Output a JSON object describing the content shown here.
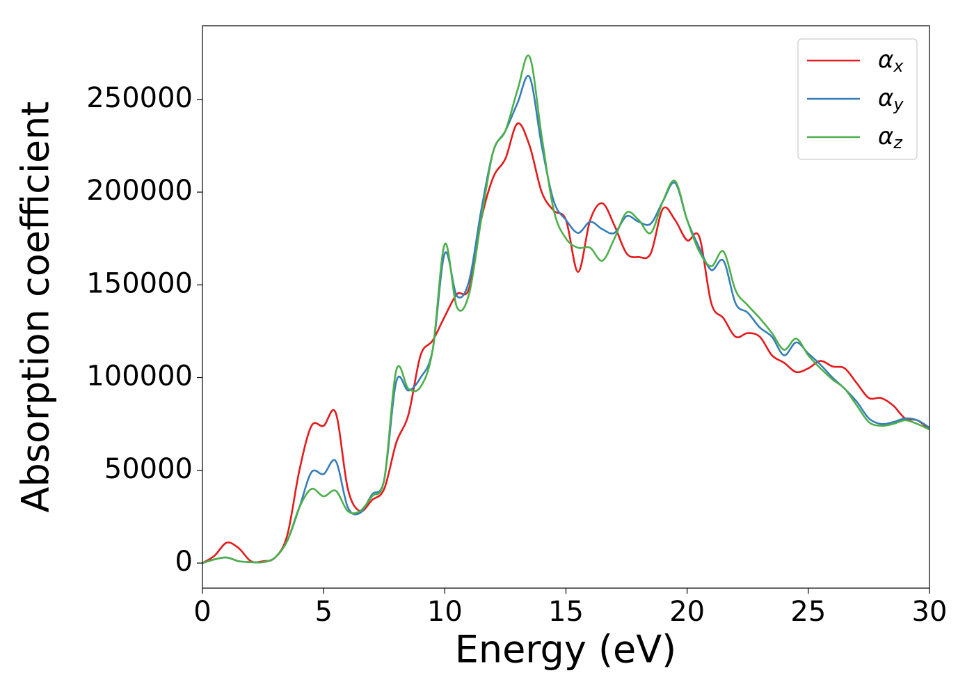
{
  "chart_data": {
    "type": "line",
    "xlabel": "Energy (eV)",
    "ylabel": "Absorption coefficient",
    "x": [
      0,
      0.5,
      1,
      1.5,
      2,
      2.5,
      3,
      3.5,
      4,
      4.5,
      5,
      5.5,
      6,
      6.5,
      7,
      7.5,
      8,
      8.5,
      9,
      9.5,
      10,
      10.5,
      11,
      11.5,
      12,
      12.5,
      13,
      13.5,
      14,
      14.5,
      15,
      15.5,
      16,
      16.5,
      17,
      17.5,
      18,
      18.5,
      19,
      19.5,
      20,
      20.5,
      21,
      21.5,
      22,
      22.5,
      23,
      23.5,
      24,
      24.5,
      25,
      25.5,
      26,
      26.5,
      27,
      27.5,
      28,
      28.5,
      29,
      29.5,
      30
    ],
    "series": [
      {
        "name": "αx",
        "color": "#e41a1c",
        "values": [
          0,
          4000,
          11000,
          8000,
          1000,
          1000,
          3000,
          15000,
          50000,
          74000,
          74000,
          81000,
          40000,
          28000,
          34000,
          40000,
          65000,
          80000,
          112000,
          120000,
          133000,
          145000,
          148000,
          185000,
          208000,
          218000,
          237000,
          225000,
          200000,
          190000,
          185000,
          157000,
          185000,
          194000,
          182000,
          167000,
          165000,
          167000,
          191000,
          185000,
          174000,
          176000,
          140000,
          132000,
          122000,
          124000,
          122000,
          112000,
          108000,
          103000,
          105000,
          109000,
          106000,
          105000,
          97000,
          89000,
          89000,
          85000,
          78000,
          77000,
          72000
        ]
      },
      {
        "name": "αy",
        "color": "#377eb8",
        "values": [
          0,
          2000,
          3000,
          1000,
          500,
          500,
          3000,
          12000,
          30000,
          49000,
          48000,
          55000,
          30000,
          27000,
          37000,
          45000,
          98000,
          93000,
          100000,
          115000,
          167000,
          144000,
          152000,
          190000,
          222000,
          233000,
          248000,
          262000,
          225000,
          195000,
          185000,
          178000,
          184000,
          180000,
          178000,
          187000,
          184000,
          183000,
          195000,
          205000,
          185000,
          170000,
          158000,
          163000,
          140000,
          135000,
          127000,
          122000,
          112000,
          119000,
          113000,
          107000,
          100000,
          94000,
          87000,
          78000,
          75000,
          76000,
          78000,
          77000,
          73000
        ]
      },
      {
        "name": "αz",
        "color": "#4daf4a",
        "values": [
          0,
          2000,
          3000,
          1000,
          500,
          500,
          3000,
          12000,
          30000,
          40000,
          36000,
          39000,
          28000,
          28000,
          36000,
          45000,
          104000,
          94000,
          95000,
          115000,
          172000,
          138000,
          145000,
          185000,
          222000,
          233000,
          255000,
          273000,
          230000,
          190000,
          175000,
          170000,
          170000,
          163000,
          175000,
          189000,
          185000,
          178000,
          195000,
          206000,
          185000,
          168000,
          160000,
          168000,
          147000,
          139000,
          132000,
          124000,
          115000,
          121000,
          112000,
          105000,
          99000,
          94000,
          85000,
          76000,
          74000,
          75000,
          77000,
          75000,
          72000
        ]
      }
    ],
    "xlim": [
      0,
      30
    ],
    "xticks": [
      0,
      5,
      10,
      15,
      20,
      25,
      30
    ],
    "ylim": [
      -13500,
      289700
    ],
    "yticks": [
      0,
      50000,
      100000,
      150000,
      200000,
      250000
    ],
    "legend": "upper right",
    "grid": false
  }
}
